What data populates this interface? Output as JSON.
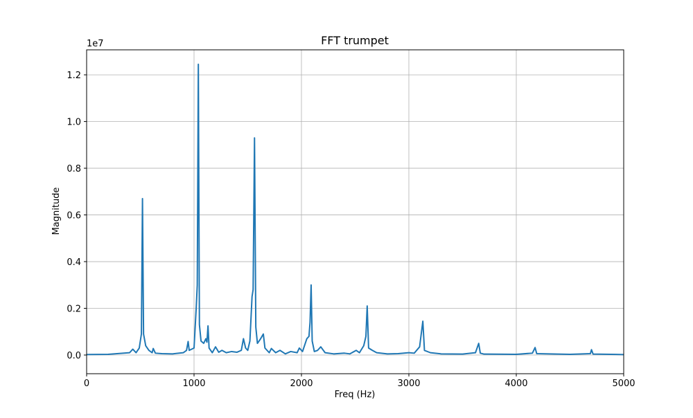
{
  "chart_data": {
    "type": "line",
    "title": "FFT trumpet",
    "x_label": "Freq (Hz)",
    "y_label": "Magnitude",
    "y_offset_label": "1e7",
    "xlim": [
      0,
      5000
    ],
    "xticks": [
      0,
      1000,
      2000,
      3000,
      4000,
      5000
    ],
    "ylim": [
      -800000,
      13070000
    ],
    "yticks": [
      {
        "value": 0,
        "label": "0.0"
      },
      {
        "value": 2000000,
        "label": "0.2"
      },
      {
        "value": 4000000,
        "label": "0.4"
      },
      {
        "value": 6000000,
        "label": "0.6"
      },
      {
        "value": 8000000,
        "label": "0.8"
      },
      {
        "value": 10000000,
        "label": "1.0"
      },
      {
        "value": 12000000,
        "label": "1.2"
      }
    ],
    "grid": true,
    "x": [
      0,
      200,
      400,
      430,
      460,
      490,
      510,
      520,
      530,
      550,
      580,
      610,
      620,
      640,
      700,
      800,
      900,
      930,
      945,
      955,
      1000,
      1020,
      1030,
      1040,
      1050,
      1065,
      1090,
      1110,
      1120,
      1130,
      1140,
      1170,
      1200,
      1230,
      1260,
      1300,
      1350,
      1400,
      1440,
      1460,
      1480,
      1500,
      1520,
      1540,
      1550,
      1563,
      1575,
      1590,
      1620,
      1645,
      1660,
      1700,
      1720,
      1760,
      1800,
      1850,
      1900,
      1960,
      1980,
      2010,
      2050,
      2070,
      2080,
      2090,
      2100,
      2120,
      2150,
      2180,
      2220,
      2300,
      2400,
      2450,
      2510,
      2540,
      2580,
      2600,
      2612,
      2625,
      2660,
      2700,
      2800,
      2900,
      3000,
      3050,
      3100,
      3130,
      3145,
      3200,
      3300,
      3500,
      3620,
      3650,
      3665,
      3700,
      4000,
      4150,
      4175,
      4190,
      4500,
      4690,
      4700,
      4715,
      5000
    ],
    "series": [
      {
        "color": "#1f77b4",
        "values": [
          20000,
          30000,
          100000,
          250000,
          100000,
          300000,
          900000,
          6700000,
          900000,
          400000,
          200000,
          100000,
          280000,
          80000,
          60000,
          50000,
          100000,
          200000,
          580000,
          200000,
          300000,
          2000000,
          3000000,
          12450000,
          1300000,
          600000,
          500000,
          700000,
          550000,
          1250000,
          300000,
          100000,
          350000,
          120000,
          200000,
          100000,
          150000,
          120000,
          200000,
          700000,
          300000,
          200000,
          600000,
          2500000,
          2800000,
          9300000,
          1200000,
          500000,
          700000,
          900000,
          300000,
          100000,
          280000,
          100000,
          200000,
          50000,
          150000,
          100000,
          300000,
          150000,
          700000,
          800000,
          1400000,
          3000000,
          600000,
          150000,
          200000,
          350000,
          100000,
          50000,
          80000,
          50000,
          200000,
          100000,
          400000,
          800000,
          2100000,
          300000,
          200000,
          100000,
          50000,
          60000,
          100000,
          80000,
          350000,
          1450000,
          200000,
          100000,
          50000,
          40000,
          100000,
          500000,
          80000,
          40000,
          30000,
          80000,
          320000,
          60000,
          30000,
          60000,
          230000,
          40000,
          20000
        ]
      }
    ]
  }
}
